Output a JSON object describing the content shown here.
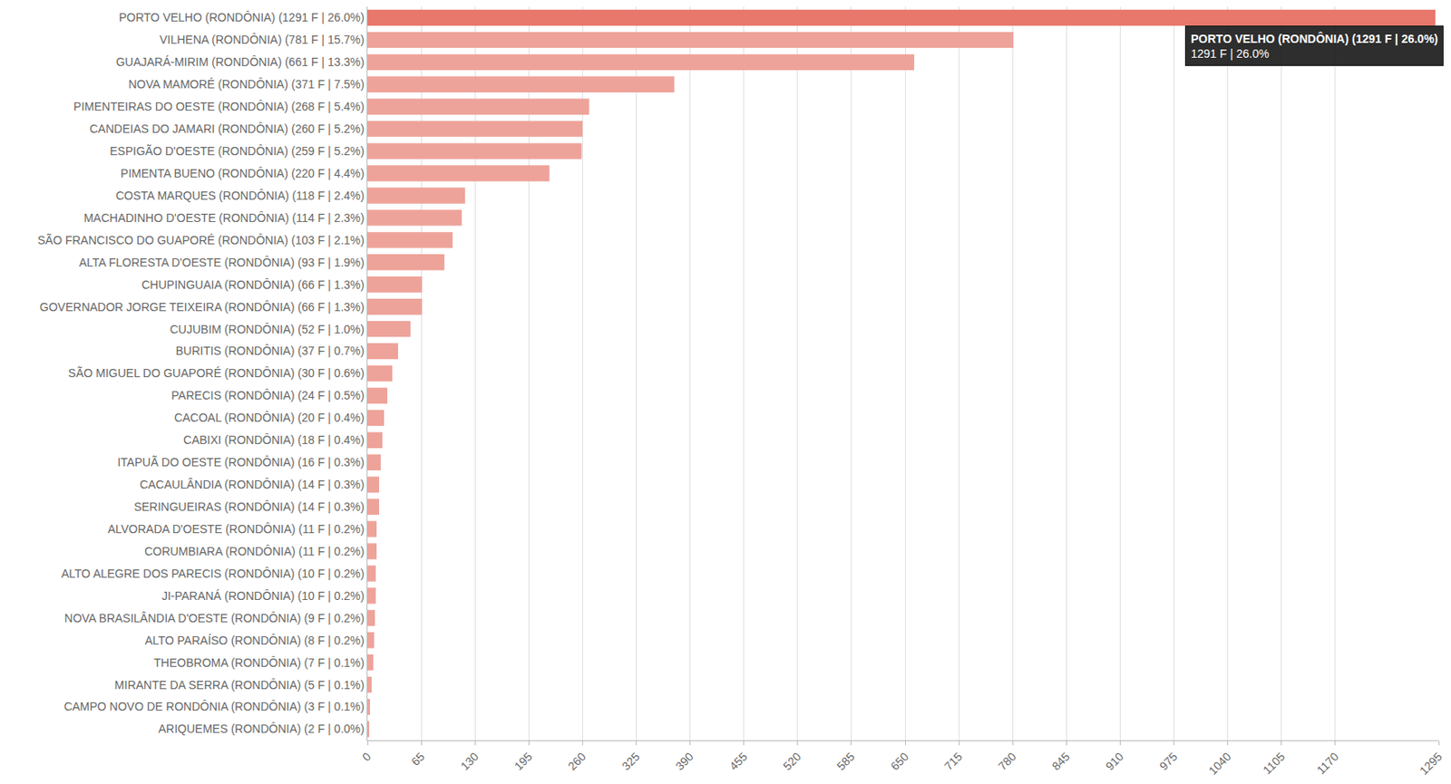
{
  "chart_data": {
    "type": "bar",
    "orientation": "horizontal",
    "categories": [
      "PORTO VELHO (RONDÔNIA) (1291 F | 26.0%)",
      "VILHENA (RONDÔNIA) (781 F | 15.7%)",
      "GUAJARÁ-MIRIM (RONDÔNIA) (661 F | 13.3%)",
      "NOVA MAMORÉ (RONDÔNIA) (371 F | 7.5%)",
      "PIMENTEIRAS DO OESTE (RONDÔNIA) (268 F | 5.4%)",
      "CANDEIAS DO JAMARI (RONDÔNIA) (260 F | 5.2%)",
      "ESPIGÃO D'OESTE (RONDÔNIA) (259 F | 5.2%)",
      "PIMENTA BUENO (RONDÔNIA) (220 F | 4.4%)",
      "COSTA MARQUES (RONDÔNIA) (118 F | 2.4%)",
      "MACHADINHO D'OESTE (RONDÔNIA) (114 F | 2.3%)",
      "SÃO FRANCISCO DO GUAPORÉ (RONDÔNIA) (103 F | 2.1%)",
      "ALTA FLORESTA D'OESTE (RONDÔNIA) (93 F | 1.9%)",
      "CHUPINGUAIA (RONDÔNIA) (66 F | 1.3%)",
      "GOVERNADOR JORGE TEIXEIRA (RONDÔNIA) (66 F | 1.3%)",
      "CUJUBIM (RONDÔNIA) (52 F | 1.0%)",
      "BURITIS (RONDÔNIA) (37 F | 0.7%)",
      "SÃO MIGUEL DO GUAPORÉ (RONDÔNIA) (30 F | 0.6%)",
      "PARECIS (RONDÔNIA) (24 F | 0.5%)",
      "CACOAL (RONDÔNIA) (20 F | 0.4%)",
      "CABIXI (RONDÔNIA) (18 F | 0.4%)",
      "ITAPUÃ DO OESTE (RONDÔNIA) (16 F | 0.3%)",
      "CACAULÂNDIA (RONDÔNIA) (14 F | 0.3%)",
      "SERINGUEIRAS (RONDÔNIA) (14 F | 0.3%)",
      "ALVORADA D'OESTE (RONDÔNIA) (11 F | 0.2%)",
      "CORUMBIARA (RONDÔNIA) (11 F | 0.2%)",
      "ALTO ALEGRE DOS PARECIS (RONDÔNIA) (10 F | 0.2%)",
      "JI-PARANÁ (RONDÔNIA) (10 F | 0.2%)",
      "NOVA BRASILÂNDIA D'OESTE (RONDÔNIA) (9 F | 0.2%)",
      "ALTO PARAÍSO (RONDÔNIA) (8 F | 0.2%)",
      "THEOBROMA (RONDÔNIA) (7 F | 0.1%)",
      "MIRANTE DA SERRA (RONDÔNIA) (5 F | 0.1%)",
      "CAMPO NOVO DE RONDÔNIA (RONDÔNIA) (3 F | 0.1%)",
      "ARIQUEMES (RONDÔNIA) (2 F | 0.0%)"
    ],
    "values": [
      1291,
      781,
      661,
      371,
      268,
      260,
      259,
      220,
      118,
      114,
      103,
      93,
      66,
      66,
      52,
      37,
      30,
      24,
      20,
      18,
      16,
      14,
      14,
      11,
      11,
      10,
      10,
      9,
      8,
      7,
      5,
      3,
      2
    ],
    "colors": [
      "#e8776c",
      "#eea39a",
      "#eea39a",
      "#eea39a",
      "#eea39a",
      "#eea39a",
      "#eea39a",
      "#eea39a",
      "#eea39a",
      "#eea39a",
      "#eea39a",
      "#eea39a",
      "#eea39a",
      "#eea39a",
      "#eea39a",
      "#eea39a",
      "#eea39a",
      "#eea39a",
      "#eea39a",
      "#eea39a",
      "#eea39a",
      "#eea39a",
      "#eea39a",
      "#eea39a",
      "#eea39a",
      "#eea39a",
      "#eea39a",
      "#eea39a",
      "#eea39a",
      "#eea39a",
      "#eea39a",
      "#eea39a",
      "#eea39a"
    ],
    "xlim": [
      0,
      1295
    ],
    "xticks": [
      0,
      65,
      130,
      195,
      260,
      325,
      390,
      455,
      520,
      585,
      650,
      715,
      780,
      845,
      910,
      975,
      1040,
      1105,
      1170,
      1295
    ],
    "grid": true,
    "annotations": [
      {
        "category": "PORTO VELHO (RONDÔNIA) (1291 F | 26.0%)",
        "lines": [
          "PORTO VELHO (RONDÔNIA) (1291 F | 26.0%)",
          "1291 F | 26.0%"
        ]
      }
    ]
  }
}
